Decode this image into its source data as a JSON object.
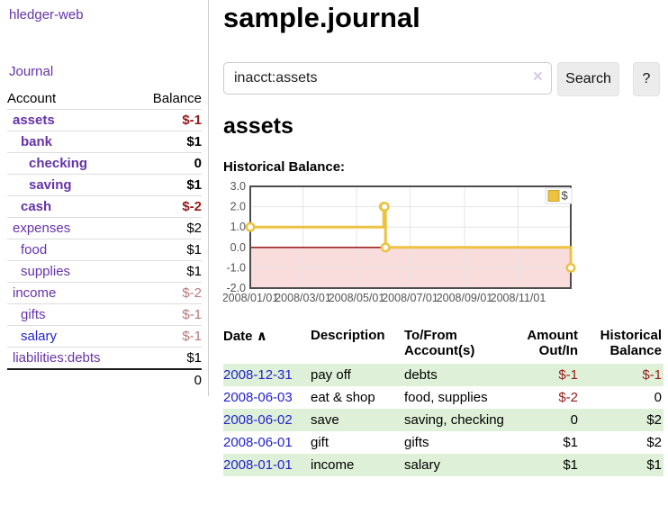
{
  "colors": {
    "link_purple": "#6633aa",
    "link_blue": "#2323cc",
    "negative_strong": "#971a1a",
    "negative_muted": "#bb7777",
    "row_green": "#dff0d8",
    "chart_line": "#edc240",
    "chart_negative_fill": "#f9dcdc",
    "chart_zero_line": "#8b0000",
    "chart_grid": "#e6e6e6",
    "chart_border": "#4d4d4d",
    "axis_label": "#545454"
  },
  "sidebar": {
    "app_title": "hledger-web",
    "journal_link": "Journal",
    "accounts": {
      "col_account": "Account",
      "col_balance": "Balance",
      "rows": [
        {
          "name": "assets",
          "indent": 0,
          "bold": true,
          "balance": "$-1"
        },
        {
          "name": "bank",
          "indent": 1,
          "bold": true,
          "balance": "$1"
        },
        {
          "name": "checking",
          "indent": 2,
          "bold": true,
          "balance": "0"
        },
        {
          "name": "saving",
          "indent": 2,
          "bold": true,
          "balance": "$1"
        },
        {
          "name": "cash",
          "indent": 1,
          "bold": true,
          "balance": "$-2"
        },
        {
          "name": "expenses",
          "indent": 0,
          "bold": false,
          "balance": "$2"
        },
        {
          "name": "food",
          "indent": 1,
          "bold": false,
          "balance": "$1"
        },
        {
          "name": "supplies",
          "indent": 1,
          "bold": false,
          "balance": "$1"
        },
        {
          "name": "income",
          "indent": 0,
          "bold": false,
          "balance": "$-2"
        },
        {
          "name": "gifts",
          "indent": 1,
          "bold": false,
          "balance": "$-1"
        },
        {
          "name": "salary",
          "indent": 1,
          "bold": false,
          "balance": "$-1",
          "link_color": "blue"
        },
        {
          "name": "liabilities:debts",
          "indent": 0,
          "bold": false,
          "balance": "$1"
        }
      ],
      "total": "0"
    }
  },
  "main": {
    "title": "sample.journal",
    "search": {
      "value": "inacct:assets",
      "clear_icon": "×",
      "search_button": "Search",
      "help_button": "?"
    },
    "account_heading": "assets",
    "chart_label": "Historical Balance:"
  },
  "chart_data": {
    "type": "line",
    "step": true,
    "title": "Historical Balance",
    "legend": "$",
    "legend_position": "top-right",
    "ylim": [
      -2,
      3
    ],
    "y_ticks": [
      3.0,
      2.0,
      1.0,
      0.0,
      -1.0,
      -2.0
    ],
    "x_ticks": [
      "2008/01/01",
      "2008/03/01",
      "2008/05/01",
      "2008/07/01",
      "2008/09/01",
      "2008/11/01"
    ],
    "x_range": [
      "2008-01-01",
      "2008-12-31"
    ],
    "grid": true,
    "negative_region_shaded": true,
    "series": [
      {
        "name": "$",
        "x": [
          "2008-01-01",
          "2008-06-01",
          "2008-06-02",
          "2008-06-03",
          "2008-12-31"
        ],
        "values": [
          1,
          2,
          2,
          0,
          -1
        ]
      }
    ]
  },
  "register": {
    "columns": [
      "Date",
      "Description",
      "To/From Account(s)",
      "Amount Out/In",
      "Historical Balance"
    ],
    "sort_icon": "∧",
    "rows": [
      {
        "date": "2008-12-31",
        "description": "pay off",
        "accounts": "debts",
        "amount": "$-1",
        "balance": "$-1"
      },
      {
        "date": "2008-06-03",
        "description": "eat & shop",
        "accounts": "food, supplies",
        "amount": "$-2",
        "balance": "0"
      },
      {
        "date": "2008-06-02",
        "description": "save",
        "accounts": "saving, checking",
        "amount": "0",
        "balance": "$2"
      },
      {
        "date": "2008-06-01",
        "description": "gift",
        "accounts": "gifts",
        "amount": "$1",
        "balance": "$2"
      },
      {
        "date": "2008-01-01",
        "description": "income",
        "accounts": "salary",
        "amount": "$1",
        "balance": "$1"
      }
    ]
  }
}
